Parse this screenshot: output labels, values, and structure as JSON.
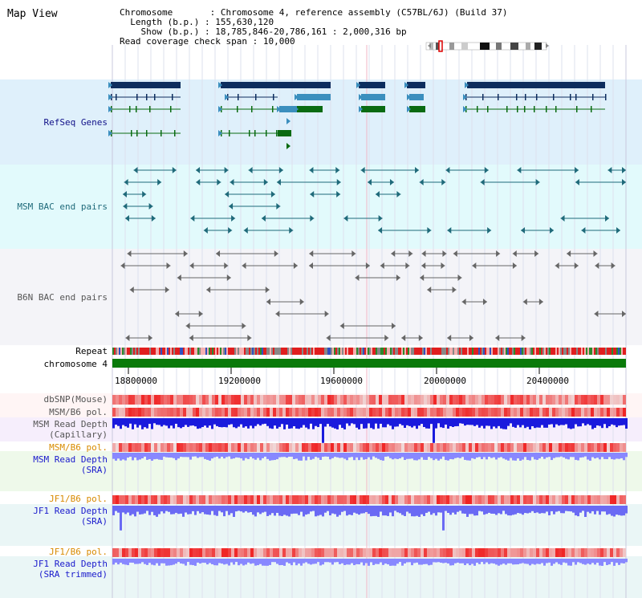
{
  "title": "Map View",
  "info": {
    "chromosome_label": "Chromosome",
    "chromosome_value": "Chromosome 4, reference assembly (C57BL/6J) (Build 37)",
    "length_label": "Length (b.p.)",
    "length_value": "155,630,120",
    "show_label": "Show (b.p.)",
    "show_value": "18,785,846-20,786,161 : 2,000,316 bp",
    "coverage_label": "Read coverage check span",
    "coverage_value": "10,000"
  },
  "tracks": {
    "refseq": "RefSeq Genes",
    "msm_bac": "MSM BAC end pairs",
    "b6n_bac": "B6N BAC end pairs",
    "repeat": "Repeat",
    "chromosome": "chromosome 4",
    "dbsnp": "dbSNP(Mouse)",
    "msm_b6_pol_1": "MSM/B6 pol.",
    "msm_read_depth_cap_1": "MSM Read Depth",
    "msm_read_depth_cap_2": "(Capillary)",
    "msm_b6_pol_2": "MSM/B6 pol.",
    "msm_read_depth_sra_1": "MSM Read Depth",
    "msm_read_depth_sra_2": "(SRA)",
    "jf1_b6_pol_1": "JF1/B6 pol.",
    "jf1_read_depth_sra_1": "JF1 Read Depth",
    "jf1_read_depth_sra_2": "(SRA)",
    "jf1_b6_pol_2": "JF1/B6 pol.",
    "jf1_read_depth_trim_1": "JF1 Read Depth",
    "jf1_read_depth_trim_2": "(SRA trimmed)"
  },
  "axis_ticks": [
    "18800000",
    "19200000",
    "19600000",
    "20000000",
    "20400000"
  ],
  "colors": {
    "refseq_bg": "#dff0fb",
    "msm_bac_bg": "#e2fafc",
    "b6n_bac_bg": "#f4f4f8",
    "gene_navy": "#0d2d5e",
    "gene_blue": "#3b8fbe",
    "gene_green": "#0a6b12",
    "bac_teal": "#1f6a7a",
    "bac_grey": "#666666",
    "chromosome_green": "#0a7a0a",
    "snp_red": "#ee3333",
    "depth_blue": "#1a1add",
    "depth_light_blue": "#8888ff"
  },
  "icons": [
    "chromosome-ideogram-icon",
    "scroll-left-icon",
    "scroll-right-icon"
  ]
}
